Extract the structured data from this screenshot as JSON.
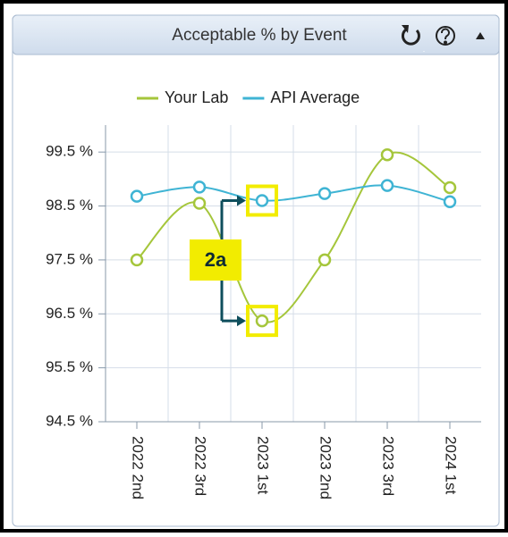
{
  "chart_data": {
    "type": "line",
    "title": "Acceptable % by Event",
    "categories": [
      "2022 2nd",
      "2022 3rd",
      "2023 1st",
      "2023 2nd",
      "2023 3rd",
      "2024 1st"
    ],
    "series": [
      {
        "name": "Your Lab",
        "color": "#a5c63b",
        "values": [
          97.5,
          98.55,
          96.37,
          97.5,
          99.45,
          98.84
        ]
      },
      {
        "name": "API Average",
        "color": "#3fb4d4",
        "values": [
          98.68,
          98.85,
          98.6,
          98.73,
          98.88,
          98.58
        ]
      }
    ],
    "ylim": [
      94.5,
      100
    ],
    "yticks": [
      {
        "value": 94.5,
        "label": "94.5 %"
      },
      {
        "value": 95.5,
        "label": "95.5 %"
      },
      {
        "value": 96.5,
        "label": "96.5 %"
      },
      {
        "value": 97.5,
        "label": "97.5 %"
      },
      {
        "value": 98.5,
        "label": "98.5 %"
      },
      {
        "value": 99.5,
        "label": "99.5 %"
      }
    ],
    "grid": true,
    "legend": "top",
    "annotation": "2a"
  }
}
